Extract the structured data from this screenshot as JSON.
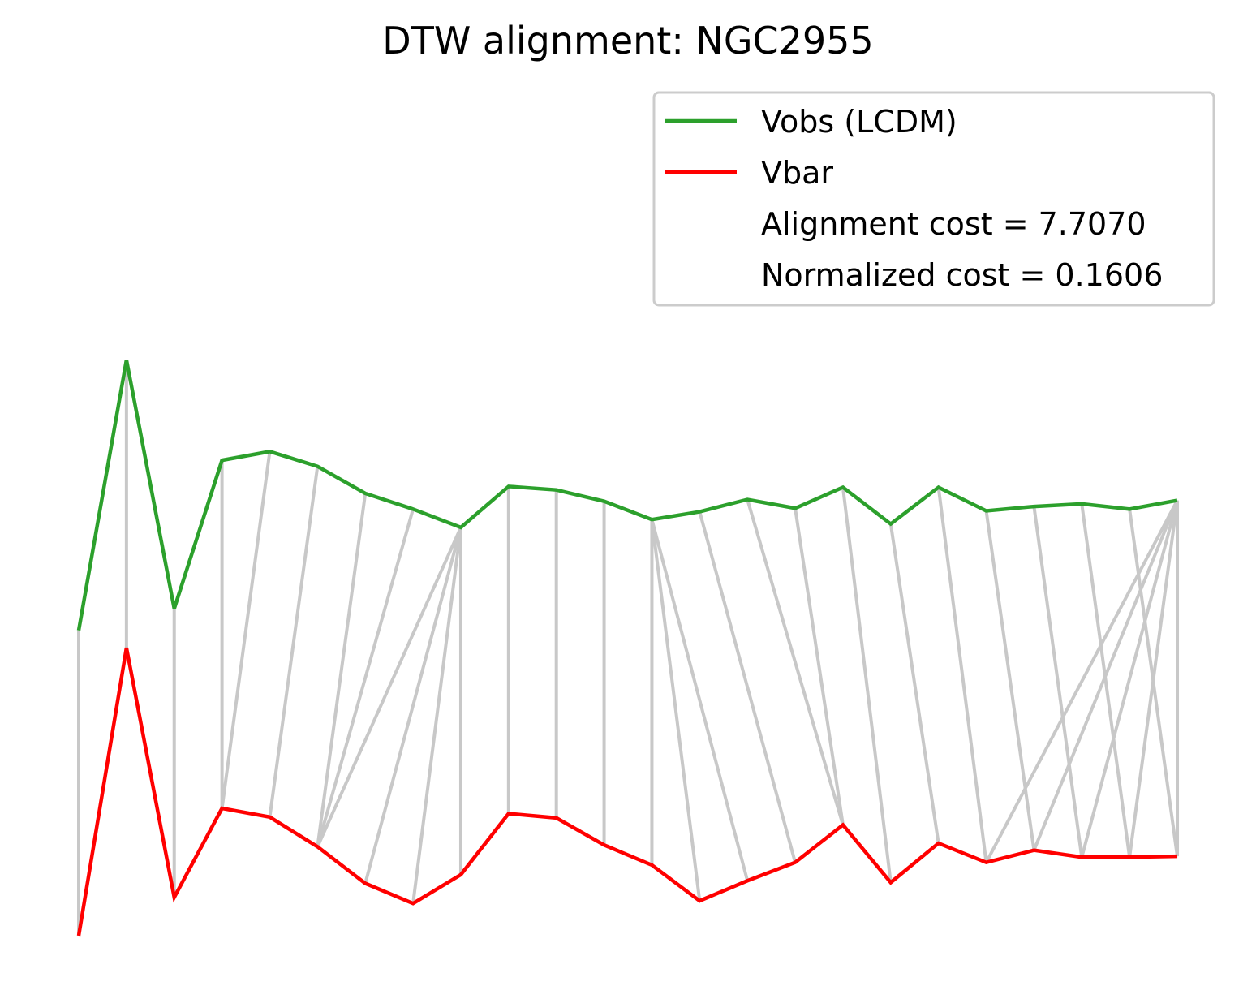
{
  "chart_data": {
    "type": "line",
    "title": "DTW alignment: NGC2955",
    "axes_visible": false,
    "grid": false,
    "legend_position": "top-right",
    "series": [
      {
        "name": "Vobs (LCDM)",
        "color": "#2ca02c",
        "values": [
          3.5,
          6.6,
          3.75,
          5.45,
          5.55,
          5.38,
          5.07,
          4.89,
          4.68,
          5.15,
          5.11,
          4.98,
          4.77,
          4.86,
          5.0,
          4.9,
          5.14,
          4.72,
          5.14,
          4.87,
          4.92,
          4.95,
          4.89,
          4.99
        ]
      },
      {
        "name": "Vbar",
        "color": "#ff0000",
        "values": [
          0.0,
          3.3,
          0.44,
          1.46,
          1.36,
          1.02,
          0.6,
          0.37,
          0.7,
          1.4,
          1.35,
          1.04,
          0.81,
          0.4,
          0.63,
          0.84,
          1.27,
          0.61,
          1.06,
          0.84,
          0.98,
          0.9,
          0.9,
          0.91
        ]
      }
    ],
    "alignment_pairs": [
      [
        0,
        0
      ],
      [
        1,
        1
      ],
      [
        2,
        2
      ],
      [
        3,
        3
      ],
      [
        4,
        3
      ],
      [
        5,
        4
      ],
      [
        6,
        5
      ],
      [
        7,
        5
      ],
      [
        8,
        5
      ],
      [
        8,
        6
      ],
      [
        8,
        7
      ],
      [
        8,
        8
      ],
      [
        9,
        9
      ],
      [
        10,
        10
      ],
      [
        11,
        11
      ],
      [
        12,
        12
      ],
      [
        12,
        13
      ],
      [
        12,
        14
      ],
      [
        13,
        15
      ],
      [
        14,
        16
      ],
      [
        15,
        16
      ],
      [
        16,
        17
      ],
      [
        17,
        18
      ],
      [
        18,
        19
      ],
      [
        19,
        20
      ],
      [
        20,
        21
      ],
      [
        21,
        22
      ],
      [
        22,
        23
      ],
      [
        23,
        23
      ],
      [
        23,
        22
      ],
      [
        23,
        21
      ],
      [
        23,
        20
      ],
      [
        23,
        19
      ]
    ],
    "alignment_line_color": "#c8c8c8",
    "legend_entries": [
      {
        "label": "Vobs (LCDM)",
        "color": "#2ca02c",
        "has_line": true
      },
      {
        "label": "Vbar",
        "color": "#ff0000",
        "has_line": true
      },
      {
        "label": "Alignment cost = 7.7070",
        "color": "",
        "has_line": false
      },
      {
        "label": "Normalized cost = 0.1606",
        "color": "",
        "has_line": false
      }
    ]
  }
}
